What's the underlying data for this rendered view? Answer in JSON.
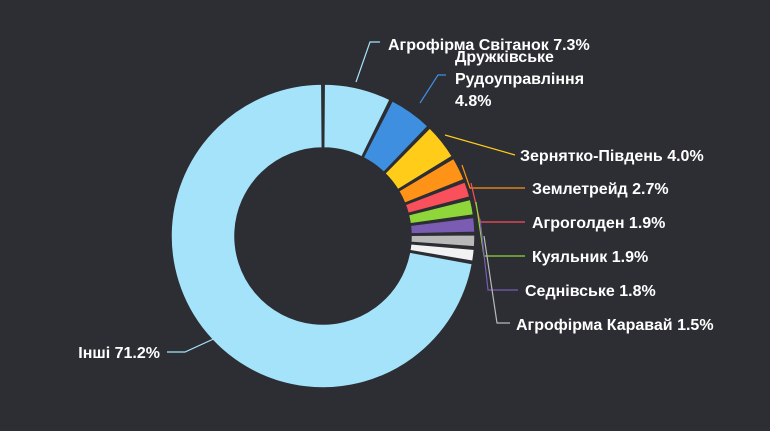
{
  "chart_data": {
    "type": "pie",
    "donut": true,
    "title": "",
    "legend": "none",
    "slices": [
      {
        "label": "Агрофірма Світанок 7.3%",
        "value": 7.3,
        "color": "#a5e3fb"
      },
      {
        "label": "Дружківське Рудоуправління 4.8%",
        "value": 4.8,
        "color": "#3f8fe1",
        "lines": [
          "Дружківське",
          "Рудоуправління",
          "4.8%"
        ]
      },
      {
        "label": "Зернятко-Південь 4.0%",
        "value": 4.0,
        "color": "#ffcc1a"
      },
      {
        "label": "Землетрейд 2.7%",
        "value": 2.7,
        "color": "#ff9317"
      },
      {
        "label": "Агроголден 1.9%",
        "value": 1.9,
        "color": "#f9505c"
      },
      {
        "label": "Куяльник 1.9%",
        "value": 1.9,
        "color": "#8fd63a"
      },
      {
        "label": "Седнівське 1.8%",
        "value": 1.8,
        "color": "#7a5db3"
      },
      {
        "label": "Агрофірма Каравай 1.5%",
        "value": 1.5,
        "color": "#b9b9b9"
      },
      {
        "label": "",
        "value": 1.5,
        "color": "#f2f2f2"
      },
      {
        "label": "Інші 71.2%",
        "value": 71.2,
        "color": "#a5e3fb"
      }
    ]
  }
}
